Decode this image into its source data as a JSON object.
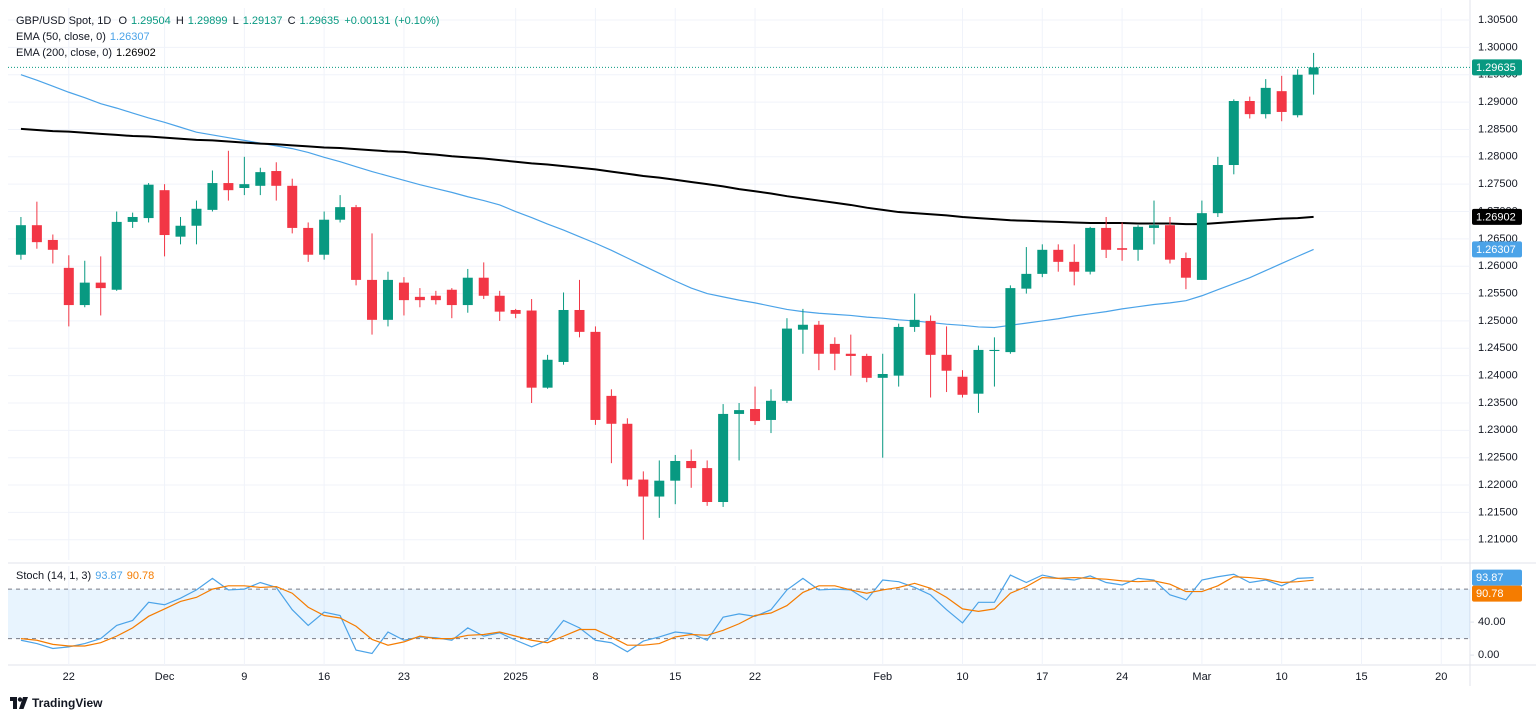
{
  "chart_data": [
    {
      "type": "candlestick",
      "title": "GBP/USD Spot, 1D",
      "ohlc_labels": {
        "open": "O",
        "high": "H",
        "low": "L",
        "close": "C"
      },
      "change": "+0.00131",
      "change_percent": "(+0.10%)",
      "up_color": "#089981",
      "down_color": "#f23645",
      "x": [
        0,
        1,
        2,
        3,
        4,
        5,
        6,
        7,
        8,
        9,
        10,
        11,
        12,
        13,
        14,
        15,
        16,
        17,
        18,
        19,
        20,
        21,
        22,
        23,
        24,
        25,
        26,
        27,
        28,
        29,
        30,
        31,
        32,
        33,
        34,
        35,
        36,
        37,
        38,
        39,
        40,
        41,
        42,
        43,
        44,
        45,
        46,
        47,
        48,
        49,
        50,
        51,
        52,
        53,
        54,
        55,
        56,
        57,
        58,
        59,
        60,
        61,
        62,
        63,
        64,
        65,
        66,
        67,
        68,
        69,
        70,
        71,
        72,
        73,
        74,
        75,
        76,
        77,
        78,
        79,
        80,
        81
      ],
      "open": [
        1.2621,
        1.2675,
        1.2648,
        1.2597,
        1.2529,
        1.257,
        1.2557,
        1.2681,
        1.2688,
        1.2739,
        1.2654,
        1.2674,
        1.2703,
        1.2752,
        1.2743,
        1.2747,
        1.2774,
        1.2747,
        1.267,
        1.2621,
        1.2685,
        1.2708,
        1.2575,
        1.2502,
        1.257,
        1.2544,
        1.2546,
        1.2557,
        1.2529,
        1.2579,
        1.2546,
        1.252,
        1.2519,
        1.2378,
        1.2425,
        1.252,
        1.248,
        1.2363,
        1.2312,
        1.221,
        1.2179,
        1.2208,
        1.2244,
        1.2231,
        1.2169,
        1.233,
        1.2339,
        1.2319,
        1.2354,
        1.2484,
        1.2493,
        1.2458,
        1.244,
        1.2436,
        1.2396,
        1.24,
        1.2489,
        1.25,
        1.2438,
        1.2398,
        1.2367,
        1.2445,
        1.2443,
        1.2559,
        1.2586,
        1.263,
        1.2608,
        1.259,
        1.267,
        1.2633,
        1.263,
        1.267,
        1.2675,
        1.2615,
        1.2575,
        1.2697,
        1.2785,
        1.2902,
        1.2878,
        1.292,
        1.2876,
        1.29504
      ],
      "high": [
        1.269,
        1.2718,
        1.2658,
        1.262,
        1.261,
        1.2618,
        1.27,
        1.2698,
        1.2752,
        1.275,
        1.269,
        1.272,
        1.2775,
        1.2811,
        1.28,
        1.278,
        1.279,
        1.276,
        1.268,
        1.27,
        1.273,
        1.2712,
        1.266,
        1.259,
        1.258,
        1.256,
        1.2555,
        1.256,
        1.2595,
        1.2607,
        1.2555,
        1.2522,
        1.254,
        1.2438,
        1.2552,
        1.2575,
        1.249,
        1.2375,
        1.2322,
        1.2225,
        1.2245,
        1.2255,
        1.2265,
        1.2245,
        1.2348,
        1.235,
        1.238,
        1.2375,
        1.2505,
        1.2522,
        1.25,
        1.247,
        1.2475,
        1.244,
        1.244,
        1.2495,
        1.255,
        1.251,
        1.249,
        1.241,
        1.2455,
        1.247,
        1.2565,
        1.2635,
        1.264,
        1.264,
        1.264,
        1.2672,
        1.269,
        1.268,
        1.2675,
        1.272,
        1.269,
        1.2625,
        1.272,
        1.28,
        1.2905,
        1.291,
        1.2942,
        1.2948,
        1.296,
        1.29899
      ],
      "low": [
        1.2612,
        1.2632,
        1.2605,
        1.249,
        1.2525,
        1.251,
        1.2555,
        1.267,
        1.268,
        1.2618,
        1.264,
        1.264,
        1.27,
        1.272,
        1.273,
        1.273,
        1.272,
        1.266,
        1.2608,
        1.2612,
        1.268,
        1.2565,
        1.2475,
        1.249,
        1.251,
        1.2525,
        1.253,
        1.2505,
        1.2515,
        1.254,
        1.25,
        1.2505,
        1.235,
        1.2376,
        1.242,
        1.247,
        1.231,
        1.224,
        1.2198,
        1.21,
        1.214,
        1.2165,
        1.2195,
        1.2162,
        1.216,
        1.2245,
        1.231,
        1.2295,
        1.235,
        1.244,
        1.241,
        1.241,
        1.24,
        1.2388,
        1.225,
        1.238,
        1.248,
        1.236,
        1.237,
        1.236,
        1.2332,
        1.238,
        1.244,
        1.255,
        1.258,
        1.259,
        1.2565,
        1.2585,
        1.2615,
        1.261,
        1.261,
        1.264,
        1.2605,
        1.2558,
        1.2575,
        1.269,
        1.2768,
        1.287,
        1.287,
        1.2865,
        1.2872,
        1.29137
      ],
      "close": [
        1.2675,
        1.2644,
        1.263,
        1.2529,
        1.257,
        1.256,
        1.2681,
        1.269,
        1.2749,
        1.2657,
        1.2674,
        1.2705,
        1.2752,
        1.2739,
        1.275,
        1.2772,
        1.2747,
        1.267,
        1.2621,
        1.2685,
        1.2708,
        1.2575,
        1.2502,
        1.2575,
        1.2538,
        1.2538,
        1.2538,
        1.2529,
        1.2579,
        1.2546,
        1.2517,
        1.2513,
        1.2378,
        1.2429,
        1.252,
        1.248,
        1.2319,
        1.2312,
        1.221,
        1.2179,
        1.2208,
        1.2244,
        1.2231,
        1.2169,
        1.233,
        1.2337,
        1.2317,
        1.2354,
        1.2486,
        1.2493,
        1.244,
        1.244,
        1.2436,
        1.2396,
        1.2403,
        1.2489,
        1.2502,
        1.2438,
        1.2409,
        1.2365,
        1.2447,
        1.2447,
        1.256,
        1.2586,
        1.263,
        1.2608,
        1.259,
        1.267,
        1.263,
        1.263,
        1.2672,
        1.2675,
        1.2612,
        1.2579,
        1.2697,
        1.2785,
        1.2902,
        1.2878,
        1.2926,
        1.2882,
        1.295,
        1.29635
      ],
      "overlays": [
        {
          "name": "EMA (50, close, 0)",
          "color": "#4ba3e8",
          "values": [
            1.295,
            1.294,
            1.2929,
            1.2918,
            1.2908,
            1.2897,
            1.2889,
            1.288,
            1.2871,
            1.2863,
            1.2854,
            1.2845,
            1.284,
            1.2835,
            1.283,
            1.2825,
            1.282,
            1.2815,
            1.2808,
            1.2799,
            1.2791,
            1.2782,
            1.2773,
            1.2765,
            1.2757,
            1.2749,
            1.2742,
            1.2735,
            1.2727,
            1.272,
            1.2712,
            1.27,
            1.2689,
            1.2677,
            1.2666,
            1.2654,
            1.2642,
            1.2629,
            1.2615,
            1.2601,
            1.2587,
            1.2573,
            1.256,
            1.255,
            1.2544,
            1.2538,
            1.2533,
            1.2527,
            1.2521,
            1.2517,
            1.2514,
            1.2512,
            1.251,
            1.2507,
            1.2505,
            1.2502,
            1.25,
            1.2497,
            1.2494,
            1.2492,
            1.2489,
            1.2488,
            1.2492,
            1.2496,
            1.25,
            1.2504,
            1.2509,
            1.2513,
            1.2517,
            1.2522,
            1.2526,
            1.253,
            1.2533,
            1.2537,
            1.2546,
            1.2557,
            1.2568,
            1.2579,
            1.2592,
            1.2605,
            1.2618,
            1.26307
          ]
        },
        {
          "name": "EMA (200, close, 0)",
          "color": "#000000",
          "values": [
            1.2851,
            1.2849,
            1.2847,
            1.2846,
            1.2844,
            1.2842,
            1.284,
            1.2838,
            1.2837,
            1.2835,
            1.2833,
            1.2831,
            1.283,
            1.2828,
            1.2826,
            1.2824,
            1.2823,
            1.2821,
            1.2819,
            1.2817,
            1.2816,
            1.2814,
            1.2812,
            1.281,
            1.2809,
            1.2806,
            1.2804,
            1.2801,
            1.2799,
            1.2797,
            1.2794,
            1.2791,
            1.2788,
            1.2786,
            1.2783,
            1.278,
            1.2777,
            1.2773,
            1.2769,
            1.2765,
            1.2762,
            1.2758,
            1.2754,
            1.275,
            1.2746,
            1.2741,
            1.2737,
            1.2733,
            1.2728,
            1.2724,
            1.272,
            1.2716,
            1.2712,
            1.2707,
            1.2703,
            1.2699,
            1.2697,
            1.2695,
            1.2693,
            1.269,
            1.2688,
            1.2686,
            1.2684,
            1.2683,
            1.2682,
            1.2681,
            1.268,
            1.2679,
            1.2679,
            1.2679,
            1.2678,
            1.2678,
            1.2678,
            1.2677,
            1.2677,
            1.2679,
            1.2681,
            1.2683,
            1.2685,
            1.2687,
            1.2688,
            1.26902
          ]
        }
      ],
      "xlim": [
        -0.81,
        90.8
      ],
      "ylim": [
        1.2063,
        1.3072
      ],
      "yticks": [
        {
          "value": 1.21,
          "label": "1.21000"
        },
        {
          "value": 1.215,
          "label": "1.21500"
        },
        {
          "value": 1.22,
          "label": "1.22000"
        },
        {
          "value": 1.225,
          "label": "1.22500"
        },
        {
          "value": 1.23,
          "label": "1.23000"
        },
        {
          "value": 1.235,
          "label": "1.23500"
        },
        {
          "value": 1.24,
          "label": "1.24000"
        },
        {
          "value": 1.245,
          "label": "1.24500"
        },
        {
          "value": 1.25,
          "label": "1.25000"
        },
        {
          "value": 1.255,
          "label": "1.25500"
        },
        {
          "value": 1.26,
          "label": "1.26000"
        },
        {
          "value": 1.265,
          "label": "1.26500"
        },
        {
          "value": 1.27,
          "label": "1.27000"
        },
        {
          "value": 1.275,
          "label": "1.27500"
        },
        {
          "value": 1.28,
          "label": "1.28000"
        },
        {
          "value": 1.285,
          "label": "1.28500"
        },
        {
          "value": 1.29,
          "label": "1.29000"
        },
        {
          "value": 1.295,
          "label": "1.29500"
        },
        {
          "value": 1.3,
          "label": "1.30000"
        },
        {
          "value": 1.305,
          "label": "1.30500"
        }
      ],
      "grid": true,
      "last_price_line": true
    },
    {
      "type": "stochastic",
      "title": "Stoch (14, 1, 3)",
      "x": [
        0,
        1,
        2,
        3,
        4,
        5,
        6,
        7,
        8,
        9,
        10,
        11,
        12,
        13,
        14,
        15,
        16,
        17,
        18,
        19,
        20,
        21,
        22,
        23,
        24,
        25,
        26,
        27,
        28,
        29,
        30,
        31,
        32,
        33,
        34,
        35,
        36,
        37,
        38,
        39,
        40,
        41,
        42,
        43,
        44,
        45,
        46,
        47,
        48,
        49,
        50,
        51,
        52,
        53,
        54,
        55,
        56,
        57,
        58,
        59,
        60,
        61,
        62,
        63,
        64,
        65,
        66,
        67,
        68,
        69,
        70,
        71,
        72,
        73,
        74,
        75,
        76,
        77,
        78,
        79,
        80,
        81
      ],
      "series": [
        {
          "color": "#4ba3e8",
          "values": [
            18,
            14,
            8,
            10,
            14,
            20,
            36,
            42,
            64,
            61,
            69,
            79,
            93,
            79,
            80,
            88,
            82,
            55,
            36,
            52,
            48,
            6,
            2,
            28,
            18,
            22,
            21,
            18,
            33,
            23,
            27,
            18,
            10,
            18,
            42,
            33,
            18,
            15,
            4,
            17,
            22,
            28,
            26,
            18,
            46,
            50,
            47,
            55,
            79,
            93,
            79,
            80,
            79,
            67,
            91,
            89,
            82,
            73,
            55,
            39,
            64,
            64,
            97,
            88,
            97,
            93,
            91,
            96,
            88,
            85,
            93,
            91,
            73,
            67,
            91,
            95,
            98,
            88,
            91,
            84,
            93,
            93.87
          ]
        },
        {
          "color": "#f57c00",
          "values": [
            20,
            18,
            13,
            11,
            11,
            15,
            23,
            33,
            47,
            56,
            65,
            70,
            80,
            84,
            84,
            82,
            83,
            75,
            58,
            48,
            45,
            35,
            19,
            12,
            16,
            23,
            20,
            20,
            24,
            25,
            28,
            23,
            18,
            15,
            23,
            31,
            31,
            22,
            12,
            12,
            14,
            22,
            25,
            24,
            30,
            38,
            48,
            51,
            60,
            76,
            84,
            84,
            79,
            75,
            79,
            82,
            87,
            81,
            70,
            56,
            53,
            56,
            75,
            83,
            94,
            93,
            94,
            93,
            92,
            90,
            89,
            90,
            86,
            77,
            77,
            84,
            95,
            94,
            92,
            88,
            89,
            90.78
          ]
        }
      ],
      "bands": [
        20,
        80
      ],
      "xlim": [
        -0.81,
        90.8
      ],
      "ylim": [
        -12,
        108
      ],
      "yticks": [
        {
          "value": 40,
          "label": "40.00"
        },
        {
          "value": 0,
          "label": "0.00"
        }
      ],
      "xticks": [
        {
          "value": 3,
          "label": "22"
        },
        {
          "value": 9,
          "label": "Dec"
        },
        {
          "value": 14,
          "label": "9"
        },
        {
          "value": 19,
          "label": "16"
        },
        {
          "value": 24,
          "label": "23"
        },
        {
          "value": 31,
          "label": "2025"
        },
        {
          "value": 36,
          "label": "8"
        },
        {
          "value": 41,
          "label": "15"
        },
        {
          "value": 46,
          "label": "22"
        },
        {
          "value": 54,
          "label": "Feb"
        },
        {
          "value": 59,
          "label": "10"
        },
        {
          "value": 64,
          "label": "17"
        },
        {
          "value": 69,
          "label": "24"
        },
        {
          "value": 74,
          "label": "Mar"
        },
        {
          "value": 79,
          "label": "10"
        },
        {
          "value": 84,
          "label": "15"
        },
        {
          "value": 89,
          "label": "20"
        }
      ],
      "grid": true
    }
  ],
  "branding": "TradingView"
}
